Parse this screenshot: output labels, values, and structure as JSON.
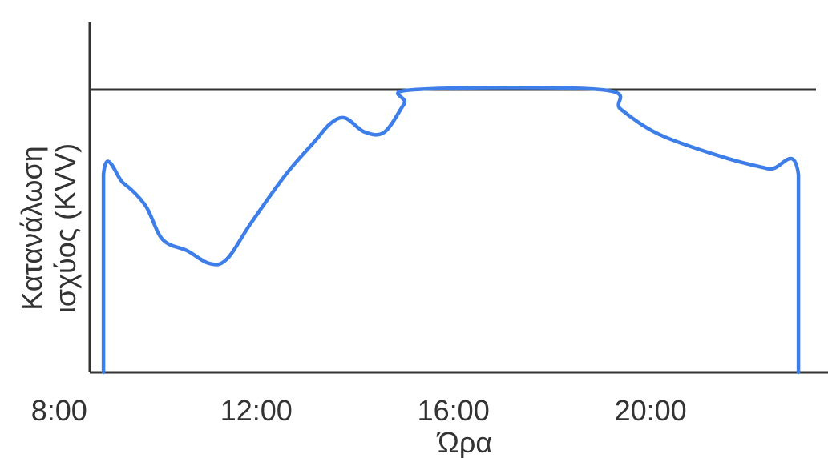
{
  "chart_data": {
    "type": "line",
    "title": "",
    "xlabel": "Ώρα",
    "ylabel_line1": "Κατανάλωση",
    "ylabel_line2": "ισχύος (KVV)",
    "xlim": [
      6.8,
      23.6
    ],
    "ylim": [
      0,
      10
    ],
    "x_ticks": [
      {
        "value": 8,
        "label": "8:00"
      },
      {
        "value": 12,
        "label": "12:00"
      },
      {
        "value": 16,
        "label": "16:00"
      },
      {
        "value": 20,
        "label": "20:00"
      }
    ],
    "limit_line": {
      "y": 10
    },
    "series": [
      {
        "color": "#3d7ee8",
        "points": [
          [
            8.9,
            0
          ],
          [
            8.9,
            7.0
          ],
          [
            9.3,
            6.7
          ],
          [
            9.75,
            5.9
          ],
          [
            10.1,
            4.7
          ],
          [
            10.6,
            4.3
          ],
          [
            11.05,
            3.85
          ],
          [
            11.4,
            4.0
          ],
          [
            11.9,
            5.3
          ],
          [
            12.6,
            7.0
          ],
          [
            13.2,
            8.2
          ],
          [
            13.5,
            8.8
          ],
          [
            13.8,
            9.0
          ],
          [
            14.2,
            8.5
          ],
          [
            14.6,
            8.5
          ],
          [
            15.0,
            9.5
          ],
          [
            15.2,
            10
          ],
          [
            19.0,
            10
          ],
          [
            19.4,
            9.3
          ],
          [
            20.2,
            8.4
          ],
          [
            21.5,
            7.6
          ],
          [
            22.4,
            7.2
          ],
          [
            23.0,
            7.0
          ],
          [
            23.0,
            0
          ]
        ]
      }
    ]
  }
}
